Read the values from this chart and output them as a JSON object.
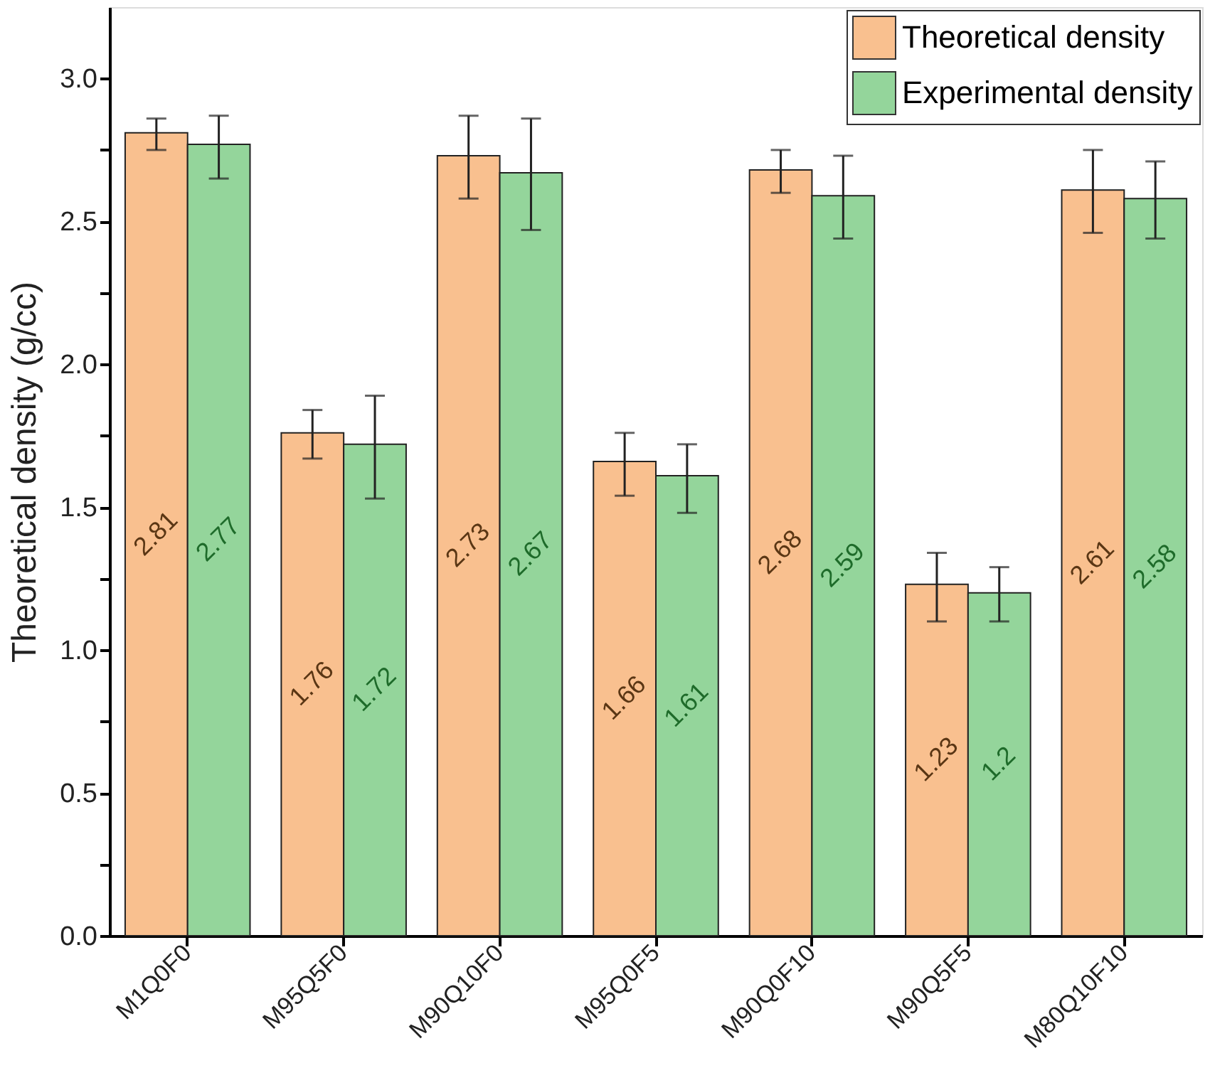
{
  "chart_data": {
    "type": "bar",
    "ylabel": "Theoretical density (g/cc)",
    "categories": [
      "M1Q0F0",
      "M95Q5F0",
      "M90Q10F0",
      "M95Q0F5",
      "M90Q0F10",
      "M90Q5F5",
      "M80Q10F10"
    ],
    "series": [
      {
        "name": "Theoretical density",
        "color": "#f9c08f",
        "values": [
          2.81,
          1.76,
          2.73,
          1.66,
          2.68,
          1.23,
          2.61
        ],
        "errors": [
          [
            2.75,
            2.86
          ],
          [
            1.67,
            1.84
          ],
          [
            2.58,
            2.87
          ],
          [
            1.54,
            1.76
          ],
          [
            2.6,
            2.75
          ],
          [
            1.1,
            1.34
          ],
          [
            2.46,
            2.75
          ]
        ]
      },
      {
        "name": "Experimental density",
        "color": "#94d59b",
        "values": [
          2.77,
          1.72,
          2.67,
          1.61,
          2.59,
          1.2,
          2.58
        ],
        "errors": [
          [
            2.65,
            2.87
          ],
          [
            1.53,
            1.89
          ],
          [
            2.47,
            2.86
          ],
          [
            1.48,
            1.72
          ],
          [
            2.44,
            2.73
          ],
          [
            1.1,
            1.29
          ],
          [
            2.44,
            2.71
          ]
        ]
      }
    ],
    "ylim": [
      0,
      3.25
    ],
    "yticks": [
      {
        "value": 0,
        "label": "0.0"
      },
      {
        "value": 0.25,
        "label": null
      },
      {
        "value": 0.5,
        "label": "0.5"
      },
      {
        "value": 0.75,
        "label": null
      },
      {
        "value": 1,
        "label": "1.0"
      },
      {
        "value": 1.25,
        "label": null
      },
      {
        "value": 1.5,
        "label": "1.5"
      },
      {
        "value": 1.75,
        "label": null
      },
      {
        "value": 2,
        "label": "2.0"
      },
      {
        "value": 2.25,
        "label": null
      },
      {
        "value": 2.5,
        "label": "2.5"
      },
      {
        "value": 2.75,
        "label": null
      },
      {
        "value": 3,
        "label": "3.0"
      }
    ],
    "data_labels": true,
    "legend": "top right",
    "grid": false
  }
}
